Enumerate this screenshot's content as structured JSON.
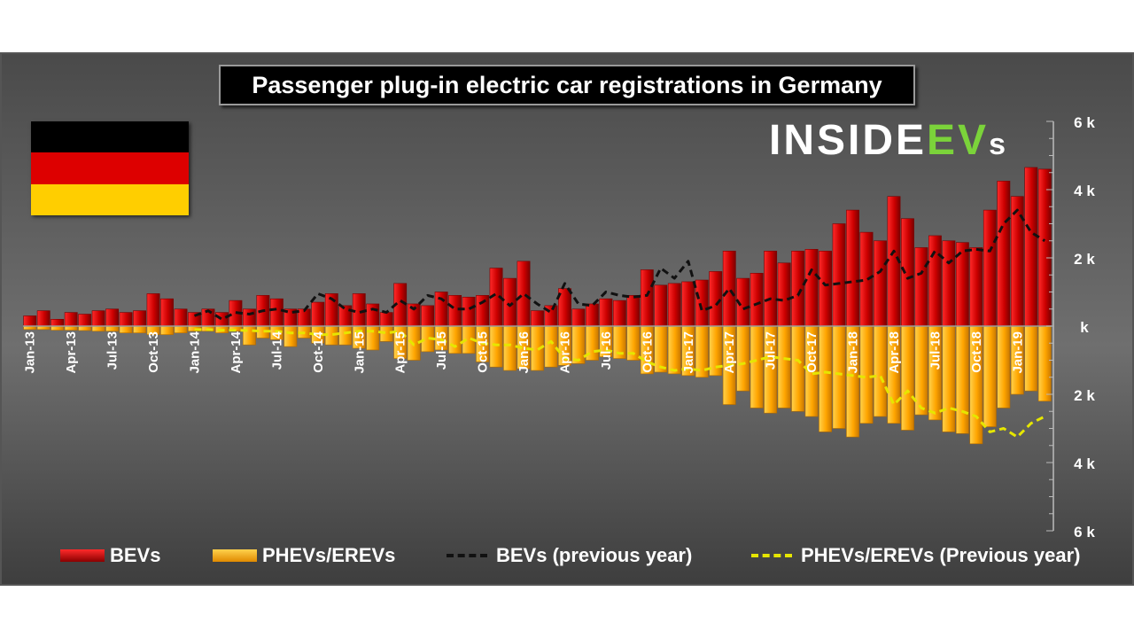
{
  "title": "Passenger plug-in electric car registrations in Germany",
  "logo": {
    "part1": "INSIDE",
    "part2": "EV",
    "part3": "s"
  },
  "flag": {
    "colors": [
      "#000000",
      "#dd0000",
      "#ffce00"
    ]
  },
  "colors": {
    "bev": "#cc0000",
    "phev": "#ffa500",
    "bev_prev": "#111111",
    "phev_prev": "#e6e600",
    "text": "#ffffff"
  },
  "legend": [
    {
      "name": "BEVs",
      "type": "bar",
      "color": "#cc0000"
    },
    {
      "name": "PHEVs/EREVs",
      "type": "bar",
      "color": "#ffa500"
    },
    {
      "name": "BEVs (previous year)",
      "type": "dashed",
      "color": "#111111"
    },
    {
      "name": "PHEVs/EREVs (Previous year)",
      "type": "dashed",
      "color": "#e6e600"
    }
  ],
  "chart_data": {
    "type": "bar",
    "title": "Passenger plug-in electric car registrations in Germany",
    "ylim": [
      -6000,
      6000
    ],
    "y_ticks": [
      6000,
      4000,
      2000,
      0,
      -2000,
      -4000,
      -6000
    ],
    "y_tick_labels": [
      "6 k",
      "4 k",
      "2 k",
      "k",
      "2 k",
      "4 k",
      "6 k"
    ],
    "x_tick_labels": [
      "Jan-13",
      "Apr-13",
      "Jul-13",
      "Oct-13",
      "Jan-14",
      "Apr-14",
      "Jul-14",
      "Oct-14",
      "Jan-15",
      "Apr-15",
      "Jul-15",
      "Oct-15",
      "Jan-16",
      "Apr-16",
      "Jul-16",
      "Oct-16",
      "Jan-17",
      "Apr-17",
      "Jul-17",
      "Oct-17",
      "Jan-18",
      "Apr-18",
      "Jul-18",
      "Oct-18",
      "Jan-19"
    ],
    "grid": false,
    "legend_position": "bottom",
    "series": [
      {
        "name": "BEVs",
        "type": "bar",
        "values": [
          300,
          450,
          200,
          400,
          350,
          450,
          500,
          400,
          450,
          950,
          800,
          500,
          400,
          500,
          400,
          750,
          500,
          900,
          800,
          500,
          500,
          700,
          950,
          600,
          950,
          650,
          400,
          1250,
          650,
          600,
          1000,
          900,
          850,
          900,
          1700,
          1400,
          1900,
          450,
          600,
          1100,
          500,
          650,
          800,
          750,
          900,
          1650,
          1200,
          1250,
          1300,
          1350,
          1600,
          2200,
          1400,
          1550,
          2200,
          1850,
          2200,
          2250,
          2200,
          3000,
          3400,
          2750,
          2500,
          3800,
          3150,
          2300,
          2650,
          2500,
          2450,
          2300,
          3400,
          4250,
          3800,
          4650,
          4600
        ]
      },
      {
        "name": "PHEVs/EREVs",
        "type": "bar",
        "values": [
          -100,
          -100,
          -120,
          -120,
          -130,
          -150,
          -150,
          -200,
          -200,
          -250,
          -250,
          -200,
          -150,
          -150,
          -200,
          -150,
          -550,
          -350,
          -400,
          -600,
          -350,
          -500,
          -550,
          -550,
          -650,
          -700,
          -450,
          -950,
          -1000,
          -750,
          -700,
          -800,
          -800,
          -1050,
          -1200,
          -1300,
          -1250,
          -1300,
          -1200,
          -1150,
          -1100,
          -1000,
          -900,
          -950,
          -1000,
          -1400,
          -1350,
          -1400,
          -1450,
          -1500,
          -1450,
          -2300,
          -1900,
          -2400,
          -2550,
          -2400,
          -2500,
          -2650,
          -3100,
          -3000,
          -3250,
          -2850,
          -2650,
          -2850,
          -3050,
          -2600,
          -2750,
          -3100,
          -3150,
          -3450,
          -2950,
          -2400,
          -2000,
          -1900,
          -2200
        ]
      },
      {
        "name": "BEVs (previous year)",
        "type": "line",
        "values": [
          null,
          null,
          null,
          null,
          null,
          null,
          null,
          null,
          null,
          null,
          null,
          null,
          300,
          450,
          200,
          400,
          350,
          450,
          500,
          400,
          450,
          950,
          800,
          500,
          400,
          500,
          400,
          750,
          500,
          900,
          800,
          500,
          500,
          700,
          950,
          600,
          950,
          650,
          400,
          1250,
          650,
          600,
          1000,
          900,
          850,
          900,
          1700,
          1400,
          1900,
          450,
          600,
          1100,
          500,
          650,
          800,
          750,
          900,
          1650,
          1200,
          1250,
          1300,
          1350,
          1600,
          2200,
          1400,
          1550,
          2200,
          1850,
          2200,
          2250,
          2200,
          3000,
          3400,
          2750,
          2500
        ]
      },
      {
        "name": "PHEVs/EREVs (Previous year)",
        "type": "line",
        "values": [
          null,
          null,
          null,
          null,
          null,
          null,
          null,
          null,
          null,
          null,
          null,
          null,
          -100,
          -100,
          -120,
          -120,
          -130,
          -150,
          -150,
          -200,
          -200,
          -250,
          -250,
          -200,
          -150,
          -150,
          -200,
          -150,
          -550,
          -350,
          -400,
          -600,
          -350,
          -500,
          -550,
          -550,
          -650,
          -700,
          -450,
          -950,
          -1000,
          -750,
          -700,
          -800,
          -800,
          -1050,
          -1200,
          -1300,
          -1250,
          -1300,
          -1200,
          -1150,
          -1100,
          -1000,
          -900,
          -950,
          -1000,
          -1400,
          -1350,
          -1400,
          -1450,
          -1500,
          -1450,
          -2300,
          -1900,
          -2400,
          -2550,
          -2400,
          -2500,
          -2650,
          -3100,
          -3000,
          -3250,
          -2850,
          -2650
        ]
      }
    ]
  }
}
